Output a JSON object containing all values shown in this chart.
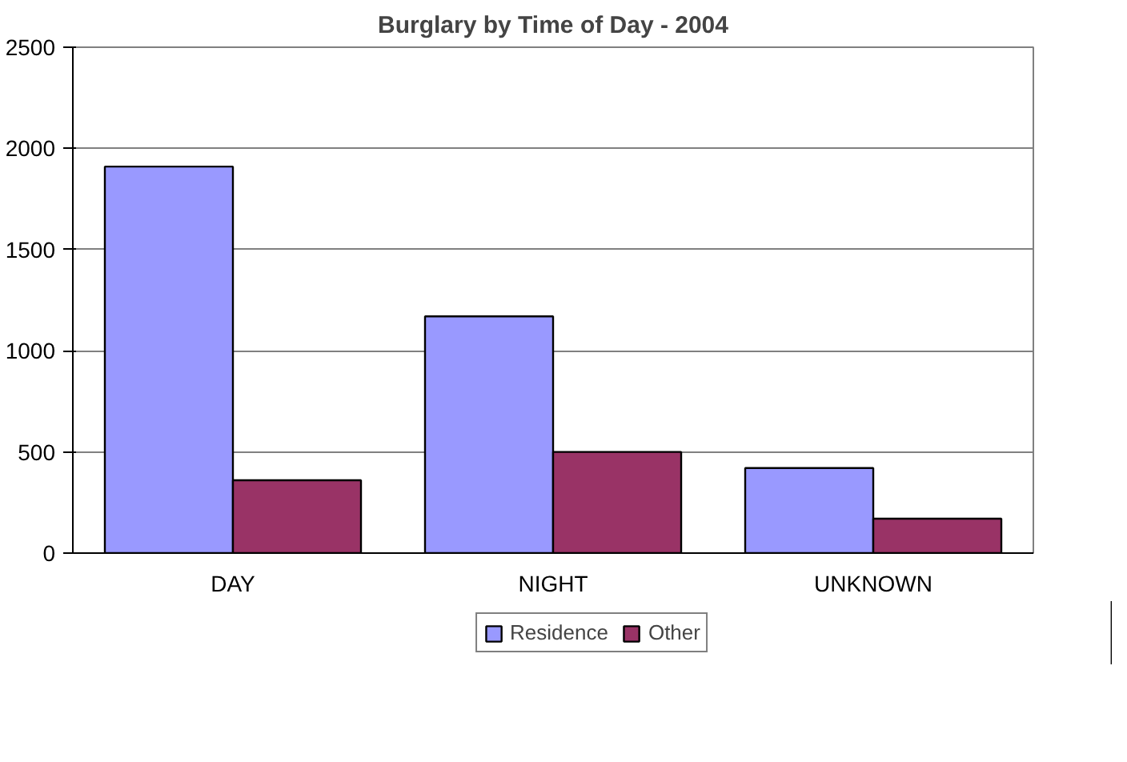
{
  "chart_data": {
    "type": "bar",
    "title": "Burglary by Time of Day - 2004",
    "categories": [
      "DAY",
      "NIGHT",
      "UNKNOWN"
    ],
    "series": [
      {
        "name": "Residence",
        "color": "#9999ff",
        "values": [
          1910,
          1170,
          420
        ]
      },
      {
        "name": "Other",
        "color": "#993366",
        "values": [
          360,
          500,
          170
        ]
      }
    ],
    "ylim": [
      0,
      2500
    ],
    "yticks": [
      0,
      500,
      1000,
      1500,
      2000,
      2500
    ],
    "grid": "y",
    "legend": "bottom"
  }
}
